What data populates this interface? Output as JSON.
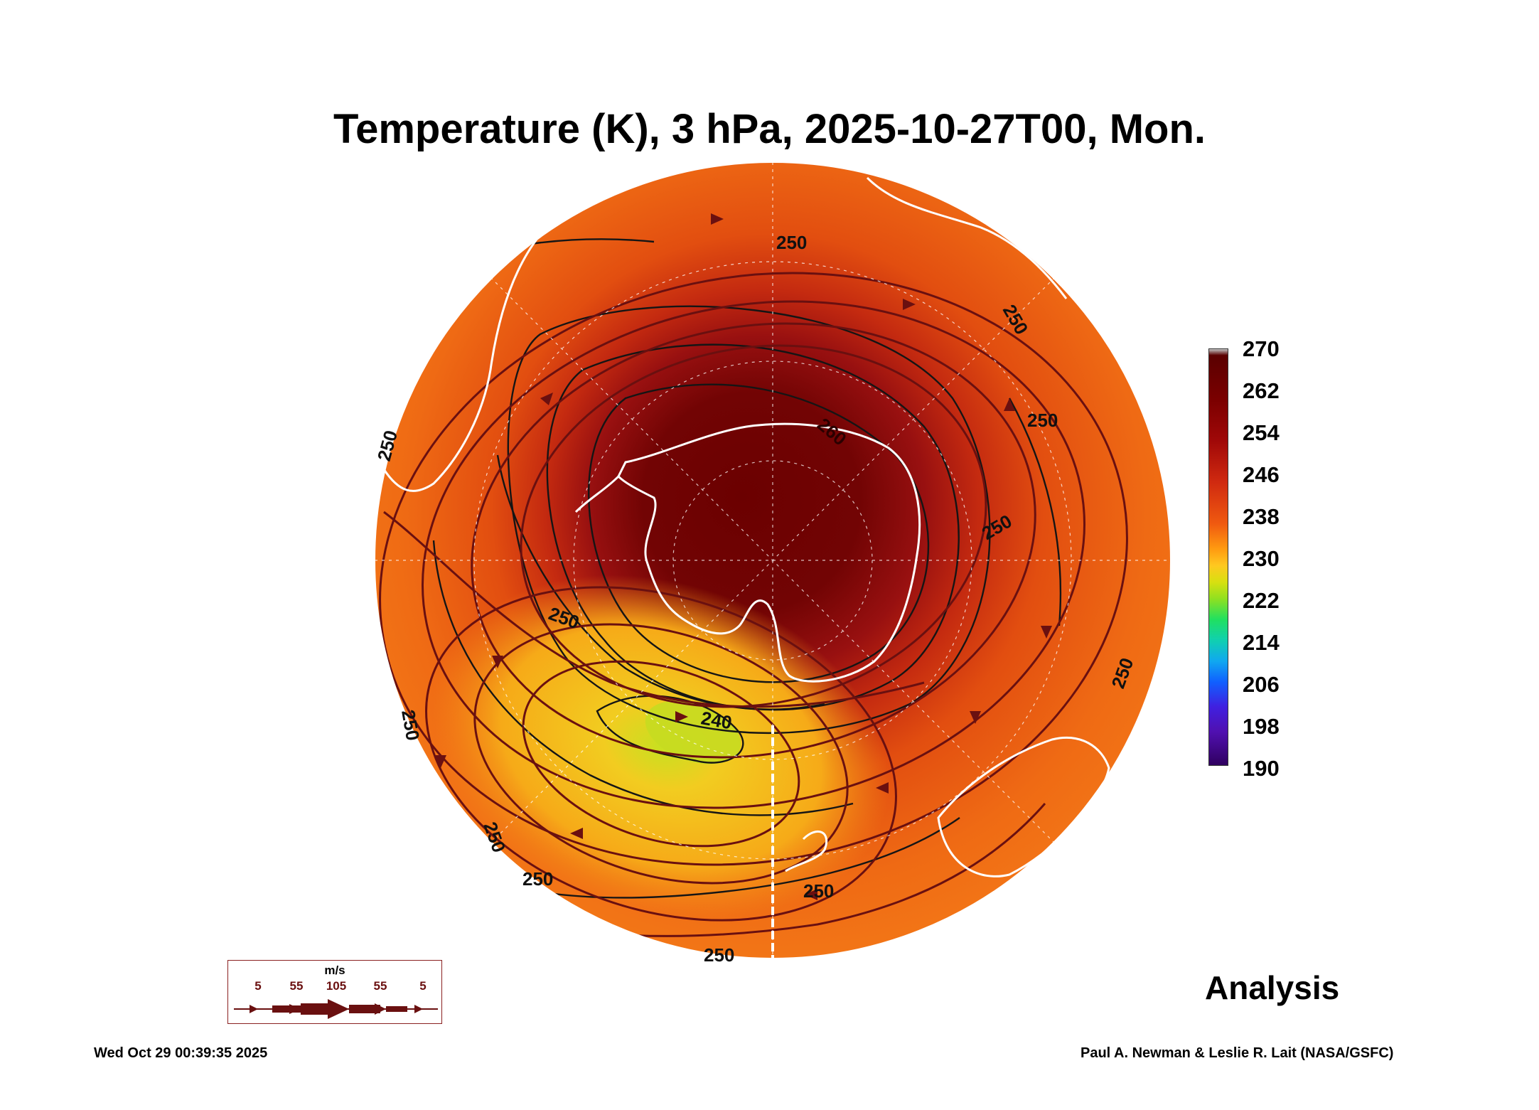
{
  "title": "Temperature (K), 3 hPa, 2025-10-27T00, Mon.",
  "colorbar": {
    "labels": [
      "270",
      "262",
      "254",
      "246",
      "238",
      "230",
      "222",
      "214",
      "206",
      "198",
      "190"
    ],
    "min": 190,
    "max": 270
  },
  "contour_labels": [
    "250",
    "250",
    "250",
    "250",
    "250",
    "250",
    "250",
    "250",
    "250",
    "250",
    "240",
    "260",
    "250",
    "250"
  ],
  "wind_legend": {
    "unit": "m/s",
    "speeds": [
      "5",
      "55",
      "105",
      "55",
      "5"
    ]
  },
  "analysis_label": "Analysis",
  "timestamp": "Wed Oct 29 00:39:35 2025",
  "credit": "Paul A. Newman & Leslie R. Lait (NASA/GSFC)",
  "colors": {
    "cold_center": "#6b0000",
    "warm_ring": "#e85010",
    "edge": "#f47a18",
    "yellow_zone": "#f2c020",
    "coastline": "#ffffff",
    "streamline": "#6a1010",
    "contour": "#111111"
  }
}
